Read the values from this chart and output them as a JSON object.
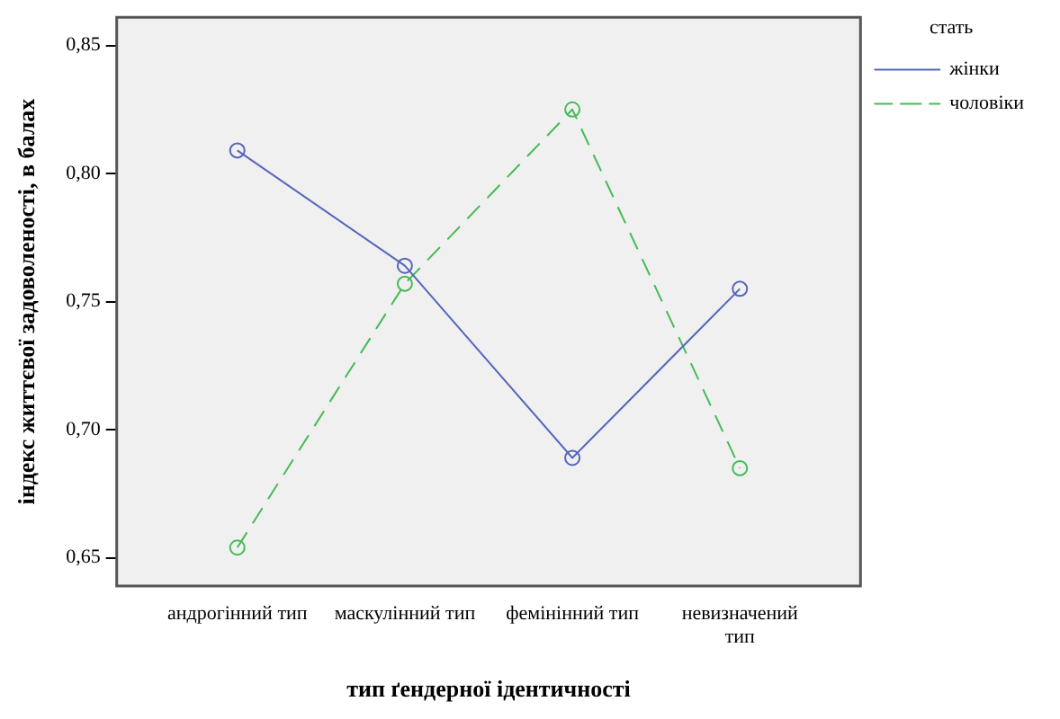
{
  "chart_data": {
    "type": "line",
    "xlabel": "тип ґендерної ідентичності",
    "ylabel": "індекс життєвої задоволеності, в балах",
    "legend_title": "стать",
    "categories": [
      "андрогінний тип",
      "маскулінний тип",
      "фемінінний тип",
      "невизначений тип"
    ],
    "series": [
      {
        "name": "жінки",
        "color": "#5566bb",
        "values": [
          0.809,
          0.764,
          0.689,
          0.755
        ],
        "line_style": "solid"
      },
      {
        "name": "чоловіки",
        "color": "#44bb55",
        "values": [
          0.654,
          0.757,
          0.825,
          0.685
        ],
        "line_style": "dashed"
      }
    ],
    "ylim": [
      0.639,
      0.861
    ],
    "yticks": [
      {
        "value": 0.65,
        "label": "0,65"
      },
      {
        "value": 0.7,
        "label": "0,70"
      },
      {
        "value": 0.75,
        "label": "0,75"
      },
      {
        "value": 0.8,
        "label": "0,80"
      },
      {
        "value": 0.85,
        "label": "0,85"
      }
    ],
    "grid": false,
    "legend": "top right",
    "marker": "circle"
  }
}
